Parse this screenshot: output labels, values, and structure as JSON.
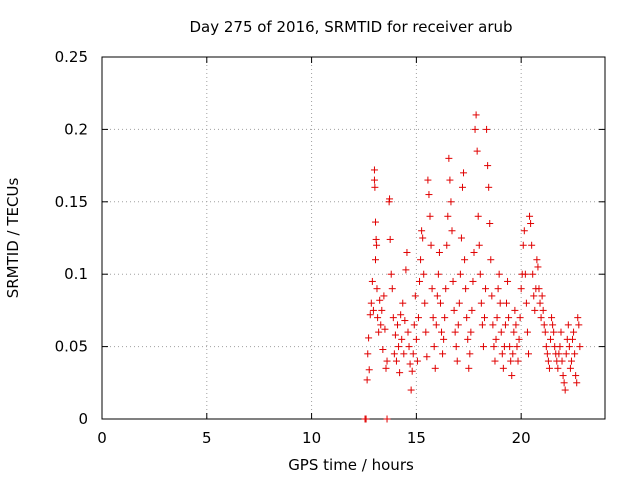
{
  "chart_data": {
    "type": "scatter",
    "title": "Day 275 of 2016, SRMTID for receiver arub",
    "xlabel": "GPS time / hours",
    "ylabel": "SRMTID / TECUs",
    "xlim": [
      0,
      24
    ],
    "ylim": [
      0,
      0.25
    ],
    "x_ticks": [
      0,
      5,
      10,
      15,
      20
    ],
    "x_tick_labels": [
      "0",
      "5",
      "10",
      "15",
      "20"
    ],
    "y_ticks": [
      0,
      0.05,
      0.1,
      0.15,
      0.2,
      0.25
    ],
    "y_tick_labels": [
      "0",
      "0.05",
      "0.1",
      "0.15",
      "0.2",
      "0.25"
    ],
    "grid": true,
    "marker": "plus",
    "color": "#e00000",
    "series": [
      {
        "name": "SRMTID",
        "points": [
          [
            12.55,
            0.0
          ],
          [
            12.6,
            0.0
          ],
          [
            13.6,
            0.0
          ],
          [
            12.65,
            0.027
          ],
          [
            12.68,
            0.045
          ],
          [
            12.72,
            0.056
          ],
          [
            12.75,
            0.034
          ],
          [
            12.8,
            0.072
          ],
          [
            12.85,
            0.08
          ],
          [
            12.9,
            0.095
          ],
          [
            12.95,
            0.075
          ],
          [
            13.0,
            0.172
          ],
          [
            13.0,
            0.165
          ],
          [
            13.02,
            0.16
          ],
          [
            13.05,
            0.136
          ],
          [
            13.05,
            0.11
          ],
          [
            13.08,
            0.124
          ],
          [
            13.1,
            0.12
          ],
          [
            13.12,
            0.09
          ],
          [
            13.15,
            0.07
          ],
          [
            13.2,
            0.06
          ],
          [
            13.25,
            0.082
          ],
          [
            13.3,
            0.065
          ],
          [
            13.35,
            0.075
          ],
          [
            13.4,
            0.048
          ],
          [
            13.45,
            0.085
          ],
          [
            13.5,
            0.062
          ],
          [
            13.55,
            0.035
          ],
          [
            13.6,
            0.04
          ],
          [
            13.7,
            0.15
          ],
          [
            13.72,
            0.152
          ],
          [
            13.75,
            0.124
          ],
          [
            13.8,
            0.1
          ],
          [
            13.85,
            0.09
          ],
          [
            13.9,
            0.07
          ],
          [
            13.95,
            0.045
          ],
          [
            14.0,
            0.058
          ],
          [
            14.05,
            0.04
          ],
          [
            14.1,
            0.065
          ],
          [
            14.15,
            0.05
          ],
          [
            14.2,
            0.032
          ],
          [
            14.25,
            0.072
          ],
          [
            14.3,
            0.055
          ],
          [
            14.35,
            0.08
          ],
          [
            14.4,
            0.045
          ],
          [
            14.45,
            0.068
          ],
          [
            14.5,
            0.103
          ],
          [
            14.55,
            0.115
          ],
          [
            14.6,
            0.06
          ],
          [
            14.65,
            0.05
          ],
          [
            14.7,
            0.038
          ],
          [
            14.75,
            0.02
          ],
          [
            14.8,
            0.033
          ],
          [
            14.85,
            0.045
          ],
          [
            14.9,
            0.065
          ],
          [
            14.95,
            0.085
          ],
          [
            15.0,
            0.055
          ],
          [
            15.05,
            0.04
          ],
          [
            15.1,
            0.07
          ],
          [
            15.15,
            0.095
          ],
          [
            15.2,
            0.11
          ],
          [
            15.25,
            0.13
          ],
          [
            15.3,
            0.125
          ],
          [
            15.35,
            0.1
          ],
          [
            15.4,
            0.08
          ],
          [
            15.45,
            0.06
          ],
          [
            15.5,
            0.043
          ],
          [
            15.55,
            0.165
          ],
          [
            15.6,
            0.155
          ],
          [
            15.65,
            0.14
          ],
          [
            15.7,
            0.12
          ],
          [
            15.75,
            0.09
          ],
          [
            15.8,
            0.07
          ],
          [
            15.85,
            0.05
          ],
          [
            15.9,
            0.035
          ],
          [
            15.95,
            0.065
          ],
          [
            16.0,
            0.085
          ],
          [
            16.05,
            0.1
          ],
          [
            16.1,
            0.115
          ],
          [
            16.15,
            0.08
          ],
          [
            16.2,
            0.06
          ],
          [
            16.25,
            0.045
          ],
          [
            16.3,
            0.055
          ],
          [
            16.35,
            0.07
          ],
          [
            16.4,
            0.09
          ],
          [
            16.45,
            0.12
          ],
          [
            16.5,
            0.14
          ],
          [
            16.55,
            0.18
          ],
          [
            16.6,
            0.165
          ],
          [
            16.65,
            0.15
          ],
          [
            16.7,
            0.13
          ],
          [
            16.75,
            0.095
          ],
          [
            16.8,
            0.075
          ],
          [
            16.85,
            0.06
          ],
          [
            16.9,
            0.05
          ],
          [
            16.95,
            0.04
          ],
          [
            17.0,
            0.065
          ],
          [
            17.05,
            0.08
          ],
          [
            17.1,
            0.1
          ],
          [
            17.15,
            0.125
          ],
          [
            17.2,
            0.16
          ],
          [
            17.25,
            0.17
          ],
          [
            17.3,
            0.11
          ],
          [
            17.35,
            0.09
          ],
          [
            17.4,
            0.07
          ],
          [
            17.45,
            0.055
          ],
          [
            17.5,
            0.035
          ],
          [
            17.55,
            0.045
          ],
          [
            17.6,
            0.06
          ],
          [
            17.65,
            0.075
          ],
          [
            17.7,
            0.095
          ],
          [
            17.75,
            0.115
          ],
          [
            17.8,
            0.2
          ],
          [
            17.85,
            0.21
          ],
          [
            17.9,
            0.185
          ],
          [
            17.95,
            0.14
          ],
          [
            18.0,
            0.12
          ],
          [
            18.05,
            0.1
          ],
          [
            18.1,
            0.08
          ],
          [
            18.15,
            0.065
          ],
          [
            18.2,
            0.05
          ],
          [
            18.25,
            0.07
          ],
          [
            18.3,
            0.09
          ],
          [
            18.35,
            0.2
          ],
          [
            18.4,
            0.175
          ],
          [
            18.45,
            0.16
          ],
          [
            18.5,
            0.135
          ],
          [
            18.55,
            0.11
          ],
          [
            18.6,
            0.085
          ],
          [
            18.65,
            0.065
          ],
          [
            18.7,
            0.05
          ],
          [
            18.75,
            0.04
          ],
          [
            18.8,
            0.055
          ],
          [
            18.85,
            0.07
          ],
          [
            18.9,
            0.09
          ],
          [
            18.95,
            0.1
          ],
          [
            19.0,
            0.08
          ],
          [
            19.05,
            0.06
          ],
          [
            19.1,
            0.045
          ],
          [
            19.15,
            0.035
          ],
          [
            19.2,
            0.05
          ],
          [
            19.25,
            0.065
          ],
          [
            19.3,
            0.08
          ],
          [
            19.35,
            0.095
          ],
          [
            19.4,
            0.07
          ],
          [
            19.45,
            0.05
          ],
          [
            19.5,
            0.04
          ],
          [
            19.55,
            0.03
          ],
          [
            19.6,
            0.045
          ],
          [
            19.65,
            0.06
          ],
          [
            19.7,
            0.075
          ],
          [
            19.75,
            0.065
          ],
          [
            19.8,
            0.05
          ],
          [
            19.85,
            0.04
          ],
          [
            19.9,
            0.055
          ],
          [
            19.95,
            0.07
          ],
          [
            20.0,
            0.09
          ],
          [
            20.05,
            0.1
          ],
          [
            20.1,
            0.12
          ],
          [
            20.15,
            0.13
          ],
          [
            20.2,
            0.1
          ],
          [
            20.25,
            0.08
          ],
          [
            20.3,
            0.06
          ],
          [
            20.35,
            0.045
          ],
          [
            20.4,
            0.14
          ],
          [
            20.45,
            0.135
          ],
          [
            20.5,
            0.12
          ],
          [
            20.55,
            0.1
          ],
          [
            20.6,
            0.085
          ],
          [
            20.65,
            0.075
          ],
          [
            20.7,
            0.09
          ],
          [
            20.75,
            0.11
          ],
          [
            20.8,
            0.105
          ],
          [
            20.85,
            0.09
          ],
          [
            20.9,
            0.08
          ],
          [
            20.95,
            0.07
          ],
          [
            21.0,
            0.085
          ],
          [
            21.05,
            0.075
          ],
          [
            21.1,
            0.065
          ],
          [
            21.15,
            0.06
          ],
          [
            21.2,
            0.05
          ],
          [
            21.25,
            0.045
          ],
          [
            21.3,
            0.04
          ],
          [
            21.35,
            0.035
          ],
          [
            21.4,
            0.055
          ],
          [
            21.45,
            0.07
          ],
          [
            21.5,
            0.065
          ],
          [
            21.55,
            0.06
          ],
          [
            21.6,
            0.05
          ],
          [
            21.65,
            0.045
          ],
          [
            21.7,
            0.04
          ],
          [
            21.75,
            0.035
          ],
          [
            21.8,
            0.045
          ],
          [
            21.85,
            0.05
          ],
          [
            21.9,
            0.06
          ],
          [
            21.95,
            0.04
          ],
          [
            22.0,
            0.03
          ],
          [
            22.05,
            0.025
          ],
          [
            22.1,
            0.02
          ],
          [
            22.15,
            0.045
          ],
          [
            22.2,
            0.055
          ],
          [
            22.25,
            0.065
          ],
          [
            22.3,
            0.05
          ],
          [
            22.35,
            0.035
          ],
          [
            22.4,
            0.04
          ],
          [
            22.45,
            0.055
          ],
          [
            22.5,
            0.06
          ],
          [
            22.55,
            0.045
          ],
          [
            22.6,
            0.03
          ],
          [
            22.65,
            0.025
          ],
          [
            22.7,
            0.07
          ],
          [
            22.75,
            0.065
          ],
          [
            22.8,
            0.05
          ]
        ]
      }
    ]
  }
}
